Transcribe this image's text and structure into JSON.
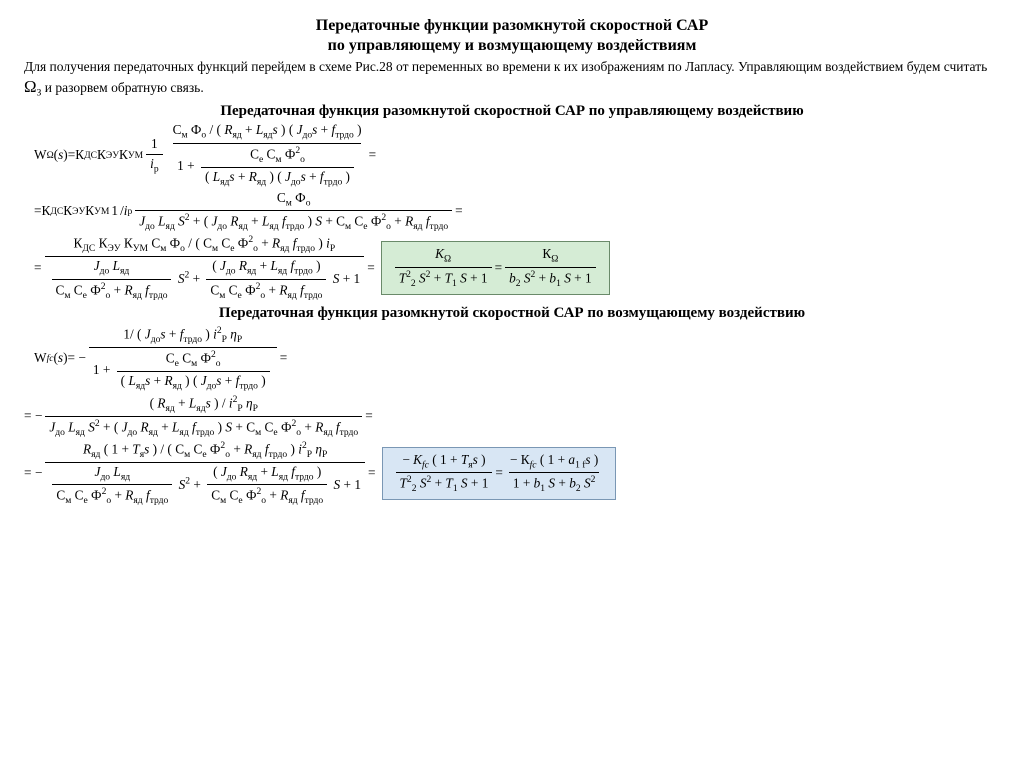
{
  "colors": {
    "background": "#ffffff",
    "text": "#000000",
    "highlight_green_bg": "#d5ecd5",
    "highlight_green_border": "#6a8a6a",
    "highlight_blue_bg": "#d8e6f4",
    "highlight_blue_border": "#7a97b4"
  },
  "typography": {
    "body_font": "Times New Roman",
    "body_size_pt": 14,
    "title_size_pt": 16,
    "title_weight": "bold",
    "subtitle_size_pt": 15
  },
  "title_line1": "Передаточные функции разомкнутой скоростной САР",
  "title_line2": "по управляющему и возмущающему воздействиям",
  "intro_prefix": "Для получения передаточных функций перейдем в схеме Рис.28 от переменных во времени к их изображениям по Лапласу. Управляющим воздействием будем считать ",
  "intro_omega": "Ω",
  "intro_omega_sub": "З",
  "intro_suffix": "и разорвем обратную связь.",
  "subtitle1": "Передаточная функция разомкнутой скоростной САР по управляющему  воздействию",
  "subtitle2": "Передаточная функция разомкнутой скоростной САР по возмущающему  воздействию",
  "sym": {
    "W": "W",
    "Omega": "Ω",
    "s": "s",
    "eq": " = ",
    "K": "К",
    "Klat": "K",
    "DS": "ДС",
    "EU": "ЭУ",
    "UM": "УМ",
    "one": "1",
    "ip": "i",
    "ip_sub": "p",
    "ip_subU": "P",
    "Cm": "С",
    "m": "м",
    "Ce": "С",
    "e": "е",
    "Phi": "Ф",
    "o": "о",
    "R": "R",
    "yad": "яд",
    "L": "L",
    "J": "J",
    "do": "до",
    "f": "f",
    "trdo": "трдо",
    "plus": " + ",
    "minus": "− ",
    "S": "S",
    "T": "T",
    "Tlat": "T",
    "b": "b",
    "fc": "fc",
    "eta": "η",
    "ya": "я",
    "a": "a",
    "onef": "1 f",
    "sq": "2",
    "sub1": "1",
    "sub2": "2",
    "slash": " /",
    "lpar": "( ",
    "rpar": " )",
    "neg": "= −"
  }
}
